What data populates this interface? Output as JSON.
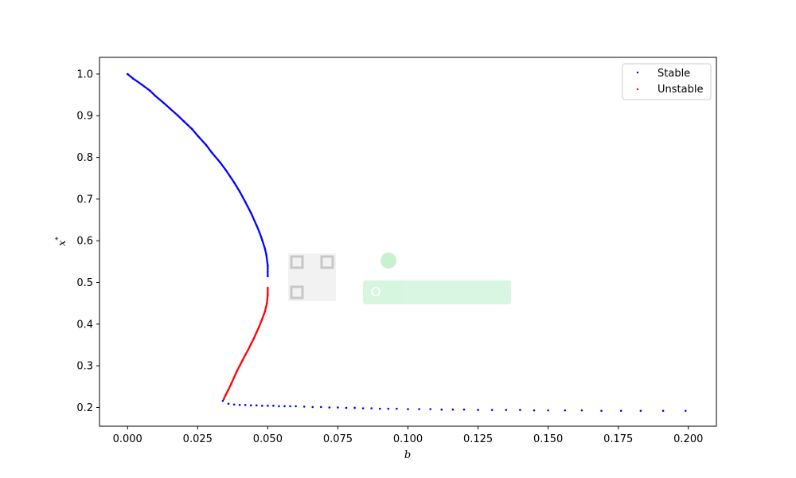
{
  "chart_data": {
    "type": "scatter",
    "xlabel": "b",
    "ylabel": "x*",
    "xlim": [
      -0.01,
      0.21
    ],
    "ylim": [
      0.155,
      1.04
    ],
    "xticks": [
      0.0,
      0.025,
      0.05,
      0.075,
      0.1,
      0.125,
      0.15,
      0.175,
      0.2
    ],
    "xtick_labels": [
      "0.000",
      "0.025",
      "0.050",
      "0.075",
      "0.100",
      "0.125",
      "0.150",
      "0.175",
      "0.200"
    ],
    "yticks": [
      0.2,
      0.3,
      0.4,
      0.5,
      0.6,
      0.7,
      0.8,
      0.9,
      1.0
    ],
    "ytick_labels": [
      "0.2",
      "0.3",
      "0.4",
      "0.5",
      "0.6",
      "0.7",
      "0.8",
      "0.9",
      "1.0"
    ],
    "legend_position": "top-right",
    "grid": false,
    "series": [
      {
        "name": "Stable",
        "color": "#0000ff",
        "points": [
          [
            0.0,
            1.0
          ],
          [
            0.002,
            0.989
          ],
          [
            0.005,
            0.975
          ],
          [
            0.008,
            0.96
          ],
          [
            0.01,
            0.947
          ],
          [
            0.013,
            0.93
          ],
          [
            0.015,
            0.918
          ],
          [
            0.018,
            0.9
          ],
          [
            0.02,
            0.887
          ],
          [
            0.023,
            0.868
          ],
          [
            0.025,
            0.852
          ],
          [
            0.028,
            0.83
          ],
          [
            0.03,
            0.812
          ],
          [
            0.033,
            0.788
          ],
          [
            0.035,
            0.77
          ],
          [
            0.038,
            0.74
          ],
          [
            0.04,
            0.718
          ],
          [
            0.042,
            0.693
          ],
          [
            0.044,
            0.667
          ],
          [
            0.046,
            0.637
          ],
          [
            0.047,
            0.621
          ],
          [
            0.048,
            0.602
          ],
          [
            0.049,
            0.581
          ],
          [
            0.0495,
            0.566
          ],
          [
            0.05,
            0.54
          ],
          [
            0.05,
            0.515
          ],
          [
            0.034,
            0.216
          ],
          [
            0.036,
            0.209
          ],
          [
            0.038,
            0.207
          ],
          [
            0.04,
            0.206
          ],
          [
            0.042,
            0.206
          ],
          [
            0.044,
            0.205
          ],
          [
            0.046,
            0.205
          ],
          [
            0.048,
            0.204
          ],
          [
            0.05,
            0.204
          ],
          [
            0.052,
            0.204
          ],
          [
            0.054,
            0.203
          ],
          [
            0.056,
            0.203
          ],
          [
            0.058,
            0.203
          ],
          [
            0.06,
            0.203
          ],
          [
            0.063,
            0.202
          ],
          [
            0.066,
            0.201
          ],
          [
            0.069,
            0.201
          ],
          [
            0.072,
            0.2
          ],
          [
            0.075,
            0.2
          ],
          [
            0.078,
            0.199
          ],
          [
            0.081,
            0.199
          ],
          [
            0.084,
            0.198
          ],
          [
            0.087,
            0.198
          ],
          [
            0.09,
            0.197
          ],
          [
            0.093,
            0.197
          ],
          [
            0.096,
            0.197
          ],
          [
            0.1,
            0.196
          ],
          [
            0.104,
            0.196
          ],
          [
            0.108,
            0.196
          ],
          [
            0.112,
            0.195
          ],
          [
            0.116,
            0.195
          ],
          [
            0.12,
            0.195
          ],
          [
            0.125,
            0.194
          ],
          [
            0.13,
            0.194
          ],
          [
            0.135,
            0.194
          ],
          [
            0.14,
            0.194
          ],
          [
            0.145,
            0.193
          ],
          [
            0.15,
            0.193
          ],
          [
            0.156,
            0.193
          ],
          [
            0.162,
            0.193
          ],
          [
            0.169,
            0.192
          ],
          [
            0.176,
            0.192
          ],
          [
            0.183,
            0.192
          ],
          [
            0.191,
            0.192
          ],
          [
            0.199,
            0.192
          ]
        ]
      },
      {
        "name": "Unstable",
        "color": "#ff0000",
        "points": [
          [
            0.05,
            0.487
          ],
          [
            0.05,
            0.47
          ],
          [
            0.0497,
            0.45
          ],
          [
            0.049,
            0.43
          ],
          [
            0.048,
            0.412
          ],
          [
            0.047,
            0.395
          ],
          [
            0.046,
            0.38
          ],
          [
            0.045,
            0.365
          ],
          [
            0.044,
            0.352
          ],
          [
            0.043,
            0.338
          ],
          [
            0.042,
            0.326
          ],
          [
            0.041,
            0.313
          ],
          [
            0.04,
            0.3
          ],
          [
            0.039,
            0.287
          ],
          [
            0.038,
            0.272
          ],
          [
            0.037,
            0.257
          ],
          [
            0.036,
            0.243
          ],
          [
            0.035,
            0.23
          ],
          [
            0.0343,
            0.22
          ]
        ]
      }
    ]
  }
}
